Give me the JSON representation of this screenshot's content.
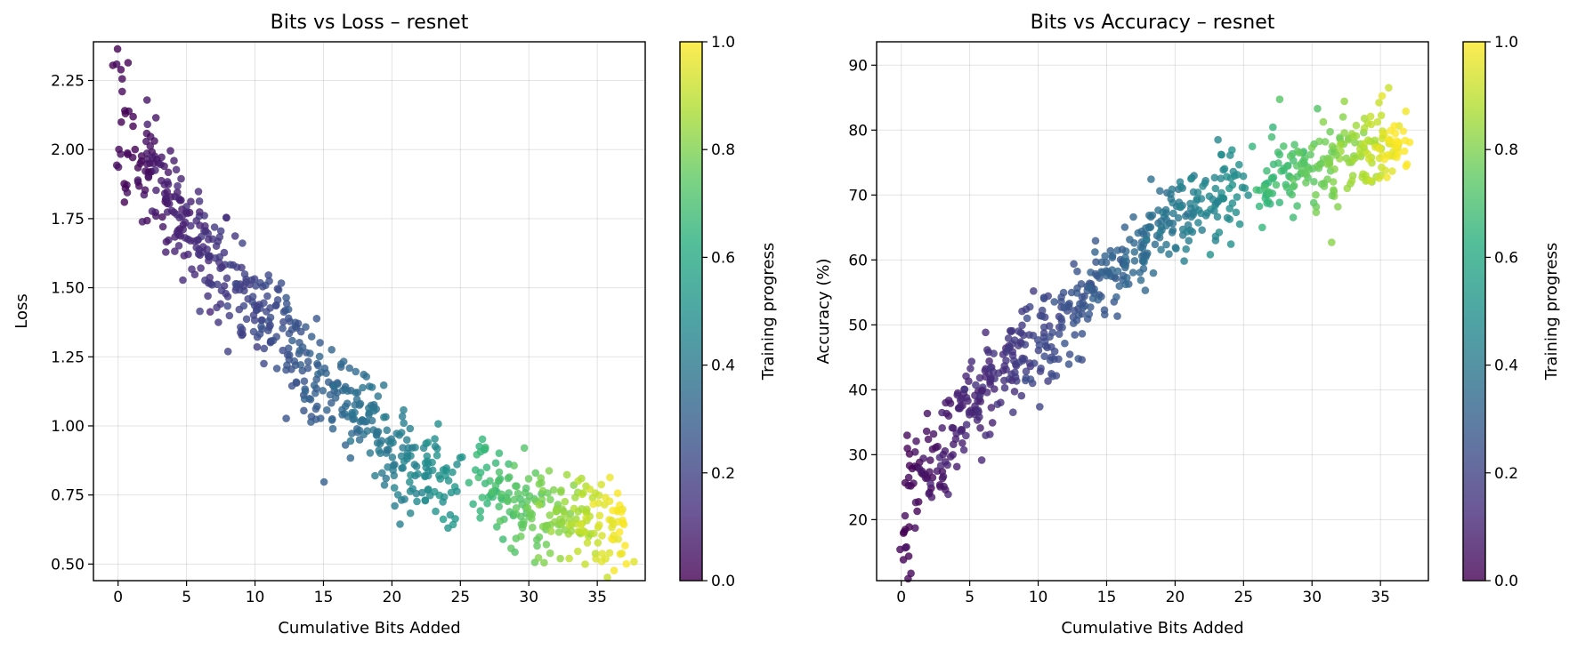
{
  "chart_data": [
    {
      "type": "scatter",
      "title": "Bits vs Loss – resnet",
      "xlabel": "Cumulative Bits Added",
      "ylabel": "Loss",
      "xlim": [
        -1.8,
        38.5
      ],
      "ylim": [
        0.44,
        2.39
      ],
      "xticks": [
        0,
        5,
        10,
        15,
        20,
        25,
        30,
        35
      ],
      "yticks": [
        0.5,
        0.75,
        1.0,
        1.25,
        1.5,
        1.75,
        2.0,
        2.25
      ],
      "ytick_labels": [
        "0.50",
        "0.75",
        "1.00",
        "1.25",
        "1.50",
        "1.75",
        "2.00",
        "2.25"
      ],
      "grid": true,
      "colormap": "viridis",
      "colorbar": {
        "label": "Training progress",
        "ticks": [
          0.0,
          0.2,
          0.4,
          0.6,
          0.8,
          1.0
        ],
        "tick_labels": [
          "0.0",
          "0.2",
          "0.4",
          "0.6",
          "0.8",
          "1.0"
        ]
      },
      "series": [
        {
          "x": [
            0.1,
            0.4,
            0.6,
            0.8,
            1.8,
            2.4,
            3.0,
            3.4,
            4.1,
            4.5,
            5.2,
            5.8,
            6.3,
            7.0,
            7.5,
            8.2,
            8.8,
            9.5,
            10.1,
            10.6,
            11.2,
            12.0,
            12.6,
            13.3,
            14.0,
            14.6,
            15.3,
            16.0,
            16.7,
            17.4,
            18.1,
            18.8,
            19.4,
            20.0,
            20.6,
            21.3,
            22.0,
            22.7,
            23.5,
            24.3,
            26.5,
            27.2,
            27.9,
            28.6,
            29.3,
            30.0,
            30.7,
            31.4,
            32.1,
            32.8,
            33.5,
            34.2,
            34.9,
            35.5,
            36.1,
            36.6
          ],
          "y": [
            2.28,
            2.2,
            2.04,
            1.95,
            1.92,
            1.96,
            1.88,
            1.83,
            1.78,
            1.74,
            1.73,
            1.69,
            1.63,
            1.6,
            1.55,
            1.5,
            1.49,
            1.46,
            1.44,
            1.41,
            1.38,
            1.34,
            1.29,
            1.25,
            1.22,
            1.18,
            1.15,
            1.12,
            1.08,
            1.05,
            1.02,
            0.99,
            0.96,
            0.93,
            0.9,
            0.88,
            0.85,
            0.83,
            0.8,
            0.79,
            0.8,
            0.78,
            0.76,
            0.74,
            0.72,
            0.71,
            0.7,
            0.69,
            0.68,
            0.67,
            0.66,
            0.65,
            0.64,
            0.63,
            0.62,
            0.62
          ],
          "progress": [
            0.0,
            0.01,
            0.01,
            0.02,
            0.04,
            0.05,
            0.06,
            0.07,
            0.09,
            0.1,
            0.11,
            0.12,
            0.13,
            0.15,
            0.16,
            0.17,
            0.19,
            0.2,
            0.21,
            0.22,
            0.23,
            0.25,
            0.26,
            0.27,
            0.29,
            0.3,
            0.31,
            0.33,
            0.34,
            0.36,
            0.37,
            0.39,
            0.4,
            0.42,
            0.43,
            0.45,
            0.46,
            0.48,
            0.49,
            0.51,
            0.66,
            0.68,
            0.7,
            0.72,
            0.74,
            0.76,
            0.78,
            0.8,
            0.82,
            0.84,
            0.87,
            0.89,
            0.92,
            0.95,
            0.98,
            1.0
          ]
        }
      ]
    },
    {
      "type": "scatter",
      "title": "Bits vs Accuracy – resnet",
      "xlabel": "Cumulative Bits Added",
      "ylabel": "Accuracy (%)",
      "xlim": [
        -1.8,
        38.5
      ],
      "ylim": [
        10.6,
        93.6
      ],
      "xticks": [
        0,
        5,
        10,
        15,
        20,
        25,
        30,
        35
      ],
      "yticks": [
        20,
        30,
        40,
        50,
        60,
        70,
        80,
        90
      ],
      "ytick_labels": [
        "20",
        "30",
        "40",
        "50",
        "60",
        "70",
        "80",
        "90"
      ],
      "grid": true,
      "colormap": "viridis",
      "colorbar": {
        "label": "Training progress",
        "ticks": [
          0.0,
          0.2,
          0.4,
          0.6,
          0.8,
          1.0
        ],
        "tick_labels": [
          "0.0",
          "0.2",
          "0.4",
          "0.6",
          "0.8",
          "1.0"
        ]
      },
      "series": [
        {
          "x": [
            0.1,
            0.3,
            0.5,
            0.8,
            1.6,
            2.2,
            2.9,
            3.5,
            4.2,
            4.8,
            5.4,
            6.0,
            6.6,
            7.2,
            7.9,
            8.5,
            9.2,
            9.8,
            10.5,
            11.1,
            11.8,
            12.5,
            13.1,
            13.8,
            14.5,
            15.2,
            15.9,
            16.6,
            17.3,
            18.0,
            18.7,
            19.4,
            20.1,
            20.8,
            21.5,
            22.2,
            22.9,
            23.6,
            24.3,
            26.5,
            27.2,
            27.9,
            28.6,
            29.3,
            30.0,
            30.7,
            31.4,
            32.1,
            32.8,
            33.5,
            34.2,
            34.9,
            35.5,
            36.0,
            36.5
          ],
          "y": [
            14,
            18,
            23,
            27,
            28,
            26,
            30,
            33,
            36,
            38,
            39,
            40,
            42,
            43,
            44,
            45,
            46,
            47,
            48,
            49,
            50,
            52,
            53,
            55,
            56,
            57,
            58,
            59,
            61,
            62,
            64,
            65,
            66,
            68,
            69,
            70,
            70,
            71,
            72,
            72,
            72,
            73,
            73,
            74,
            75,
            75,
            75,
            76,
            76,
            76,
            77,
            77,
            78,
            78,
            77
          ],
          "progress": [
            0.0,
            0.01,
            0.01,
            0.02,
            0.04,
            0.05,
            0.07,
            0.08,
            0.09,
            0.1,
            0.11,
            0.12,
            0.13,
            0.14,
            0.16,
            0.17,
            0.19,
            0.2,
            0.21,
            0.22,
            0.23,
            0.25,
            0.26,
            0.27,
            0.29,
            0.3,
            0.31,
            0.33,
            0.34,
            0.36,
            0.37,
            0.39,
            0.4,
            0.42,
            0.44,
            0.45,
            0.47,
            0.48,
            0.5,
            0.66,
            0.68,
            0.7,
            0.72,
            0.74,
            0.76,
            0.78,
            0.8,
            0.82,
            0.84,
            0.87,
            0.89,
            0.92,
            0.95,
            0.98,
            1.0
          ]
        }
      ]
    }
  ]
}
